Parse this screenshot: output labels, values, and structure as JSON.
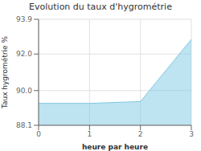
{
  "chart_data": {
    "type": "area",
    "title": "Evolution du taux d'hygrométrie",
    "xlabel": "heure par heure",
    "ylabel": "Taux hygrométrie %",
    "x": [
      0,
      1,
      2,
      3
    ],
    "values": [
      89.3,
      89.3,
      89.4,
      92.8
    ],
    "color": "#7ec8e3",
    "xlim": [
      0,
      3
    ],
    "ylim": [
      88.1,
      93.9
    ],
    "xticks": [
      0,
      1,
      2,
      3
    ],
    "yticks": [
      88.1,
      {
        "value": 90,
        "label": "90.0"
      },
      {
        "value": 92,
        "label": "92.0"
      },
      93.9
    ],
    "grid": true
  }
}
